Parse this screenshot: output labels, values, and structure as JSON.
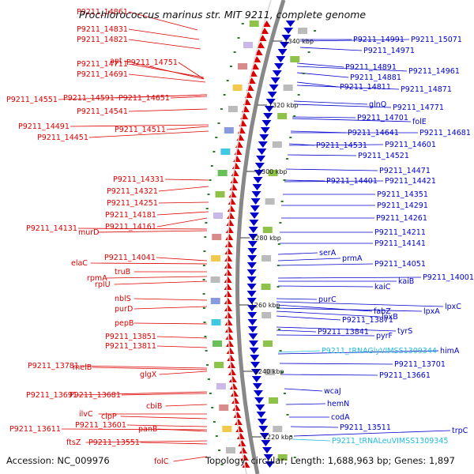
{
  "title": "Prochlorococcus marinus str. MIT 9211, complete genome",
  "accession": "Accession: NC_009976",
  "topology": "Topology: circular; Length: 1,688,963 bp; Genes: 1,897",
  "colors": {
    "forward_strand": "#dd0000",
    "reverse_strand": "#0000cc",
    "trna": "#22bbdd",
    "backbone": "#888888",
    "tick": "#2a7a2a"
  },
  "ticks": [
    "1340 kbp",
    "1320 kbp",
    "1300 kbp",
    "1280 kbp",
    "1260 kbp",
    "1240 kbp",
    "1220 kbp"
  ],
  "left_labels": [
    "P9211_14861",
    "P9211_14831",
    "P9211_14821",
    "P9211_14711",
    "apt",
    "P9211_14751",
    "P9211_14691",
    "P9211_14551",
    "P9211_14591",
    "P9211_14651",
    "P9211_14541",
    "P9211_14491",
    "P9211_14511",
    "P9211_14451",
    "P9211_14331",
    "P9211_14321",
    "P9211_14251",
    "P9211_14181",
    "P9211_14161",
    "P9211_14131",
    "murD",
    "P9211_14041",
    "elaC",
    "truB",
    "rpmA",
    "rplU",
    "nblS",
    "purD",
    "pepB",
    "P9211_13851",
    "P9211_13811",
    "P9211_13781",
    "melB",
    "glgX",
    "P9211_13691",
    "P9211_13681",
    "cbiB",
    "ilvC",
    "clpP",
    "P9211_13601",
    "P9211_13611",
    "panB",
    "ftsZ",
    "P9211_13551",
    "folC"
  ],
  "right_labels": [
    "P9211_14991",
    "P9211_15071",
    "P9211_14971",
    "P9211_14891",
    "P9211_14961",
    "P9211_14881",
    "P9211_14811",
    "P9211_14871",
    "glnQ",
    "P9211_14771",
    "P9211_14701",
    "folE",
    "P9211_14641",
    "P9211_14681",
    "P9211_14531",
    "P9211_14601",
    "P9211_14521",
    "P9211_14471",
    "P9211_14401",
    "P9211_14421",
    "P9211_14351",
    "P9211_14291",
    "P9211_14261",
    "P9211_14211",
    "P9211_14141",
    "serA",
    "prmA",
    "P9211_14051",
    "P9211_14001",
    "kaiB",
    "kaiC",
    "purC",
    "lpxC",
    "fabZ",
    "lpxA",
    "lpxB",
    "P9211_13871",
    "tyrS",
    "P9211_13841",
    "pyrF",
    "P9211_tRNAGlyVIMSS1309344",
    "himA",
    "P9211_13701",
    "P9211_13661",
    "wcaJ",
    "hemN",
    "codA",
    "P9211_13511",
    "P9211_tRNALeuVIMSS1309345",
    "trpC"
  ]
}
